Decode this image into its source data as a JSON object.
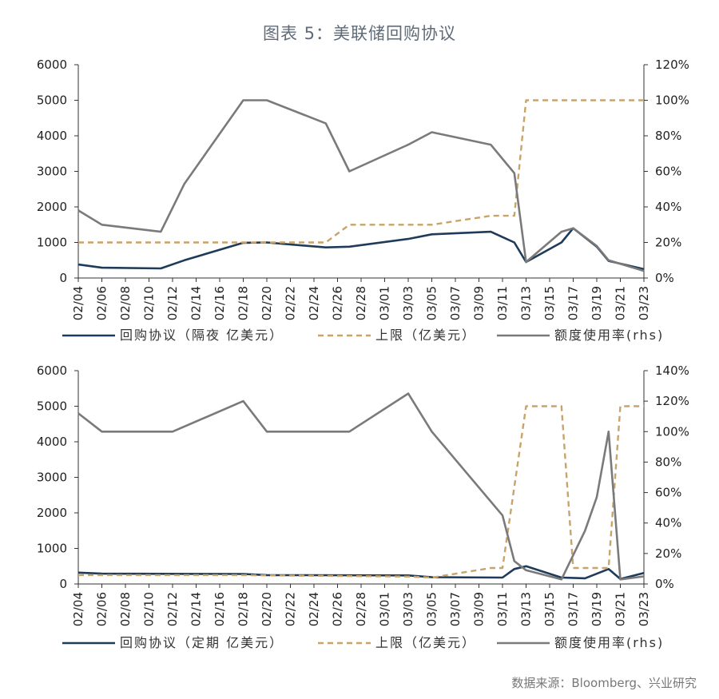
{
  "title": "图表 5：美联储回购协议",
  "source": "数据来源：Bloomberg、兴业研究",
  "colors": {
    "repo": "#1f3b5a",
    "cap": "#c8a46a",
    "usage": "#7a7a7a",
    "axis": "#333333"
  },
  "chart_data": [
    {
      "type": "line",
      "x": [
        "02/04",
        "02/05",
        "02/06",
        "02/07",
        "02/08",
        "02/09",
        "02/10",
        "02/11",
        "02/12",
        "02/13",
        "02/14",
        "02/15",
        "02/16",
        "02/17",
        "02/18",
        "02/19",
        "02/20",
        "02/21",
        "02/22",
        "02/23",
        "02/24",
        "02/25",
        "02/26",
        "02/27",
        "02/28",
        "02/29",
        "03/01",
        "03/02",
        "03/03",
        "03/04",
        "03/05",
        "03/06",
        "03/07",
        "03/08",
        "03/09",
        "03/10",
        "03/11",
        "03/12",
        "03/13",
        "03/14",
        "03/15",
        "03/16",
        "03/17",
        "03/18",
        "03/19",
        "03/20",
        "03/21",
        "03/22",
        "03/23"
      ],
      "xticks": [
        "02/04",
        "02/06",
        "02/08",
        "02/10",
        "02/12",
        "02/14",
        "02/16",
        "02/18",
        "02/20",
        "02/22",
        "02/24",
        "02/26",
        "02/28",
        "03/01",
        "03/03",
        "03/05",
        "03/07",
        "03/09",
        "03/11",
        "03/13",
        "03/15",
        "03/17",
        "03/19",
        "03/21",
        "03/23"
      ],
      "y_left": {
        "ticks": [
          "0",
          "1000",
          "2000",
          "3000",
          "4000",
          "5000",
          "6000"
        ],
        "min": 0,
        "max": 6000
      },
      "y_right": {
        "ticks": [
          "0%",
          "20%",
          "40%",
          "60%",
          "80%",
          "100%",
          "120%"
        ],
        "min": 0,
        "max": 120
      },
      "series": [
        {
          "name": "回购协议（隔夜 亿美元）",
          "axis": "left",
          "style": "solid",
          "color": "#1f3b5a",
          "points": [
            [
              "02/04",
              380
            ],
            [
              "02/06",
              290
            ],
            [
              "02/11",
              270
            ],
            [
              "02/13",
              500
            ],
            [
              "02/18",
              990
            ],
            [
              "02/20",
              1000
            ],
            [
              "02/25",
              860
            ],
            [
              "02/27",
              880
            ],
            [
              "03/03",
              1100
            ],
            [
              "03/05",
              1230
            ],
            [
              "03/10",
              1300
            ],
            [
              "03/12",
              1000
            ],
            [
              "03/13",
              450
            ],
            [
              "03/16",
              1000
            ],
            [
              "03/17",
              1400
            ],
            [
              "03/19",
              880
            ],
            [
              "03/20",
              480
            ],
            [
              "03/23",
              250
            ]
          ]
        },
        {
          "name": "上限（亿美元）",
          "axis": "left",
          "style": "dashed",
          "color": "#c8a46a",
          "points": [
            [
              "02/04",
              1000
            ],
            [
              "02/25",
              1000
            ],
            [
              "02/27",
              1500
            ],
            [
              "03/05",
              1500
            ],
            [
              "03/10",
              1750
            ],
            [
              "03/12",
              1750
            ],
            [
              "03/13",
              5000
            ],
            [
              "03/23",
              5000
            ]
          ]
        },
        {
          "name": "额度使用率(rhs)",
          "axis": "right",
          "style": "solid",
          "color": "#7a7a7a",
          "points": [
            [
              "02/04",
              38
            ],
            [
              "02/06",
              30
            ],
            [
              "02/11",
              26
            ],
            [
              "02/13",
              53
            ],
            [
              "02/18",
              100
            ],
            [
              "02/20",
              100
            ],
            [
              "02/25",
              87
            ],
            [
              "02/27",
              60
            ],
            [
              "03/03",
              75
            ],
            [
              "03/05",
              82
            ],
            [
              "03/10",
              75
            ],
            [
              "03/12",
              59
            ],
            [
              "03/13",
              9
            ],
            [
              "03/16",
              26
            ],
            [
              "03/17",
              28
            ],
            [
              "03/19",
              18
            ],
            [
              "03/20",
              10
            ],
            [
              "03/23",
              4
            ]
          ]
        }
      ]
    },
    {
      "type": "line",
      "x": [
        "02/04",
        "02/05",
        "02/06",
        "02/07",
        "02/08",
        "02/09",
        "02/10",
        "02/11",
        "02/12",
        "02/13",
        "02/14",
        "02/15",
        "02/16",
        "02/17",
        "02/18",
        "02/19",
        "02/20",
        "02/21",
        "02/22",
        "02/23",
        "02/24",
        "02/25",
        "02/26",
        "02/27",
        "02/28",
        "02/29",
        "03/01",
        "03/02",
        "03/03",
        "03/04",
        "03/05",
        "03/06",
        "03/07",
        "03/08",
        "03/09",
        "03/10",
        "03/11",
        "03/12",
        "03/13",
        "03/14",
        "03/15",
        "03/16",
        "03/17",
        "03/18",
        "03/19",
        "03/20",
        "03/21",
        "03/22",
        "03/23"
      ],
      "xticks": [
        "02/04",
        "02/06",
        "02/08",
        "02/10",
        "02/12",
        "02/14",
        "02/16",
        "02/18",
        "02/20",
        "02/22",
        "02/24",
        "02/26",
        "02/28",
        "03/01",
        "03/03",
        "03/05",
        "03/07",
        "03/09",
        "03/11",
        "03/13",
        "03/15",
        "03/17",
        "03/19",
        "03/21",
        "03/23"
      ],
      "y_left": {
        "ticks": [
          "0",
          "1000",
          "2000",
          "3000",
          "4000",
          "5000",
          "6000"
        ],
        "min": 0,
        "max": 6000
      },
      "y_right": {
        "ticks": [
          "0%",
          "20%",
          "40%",
          "60%",
          "80%",
          "100%",
          "120%",
          "140%"
        ],
        "min": 0,
        "max": 140
      },
      "series": [
        {
          "name": "回购协议（定期 亿美元）",
          "axis": "left",
          "style": "solid",
          "color": "#1f3b5a",
          "points": [
            [
              "02/04",
              320
            ],
            [
              "02/06",
              290
            ],
            [
              "02/18",
              280
            ],
            [
              "02/20",
              250
            ],
            [
              "03/03",
              240
            ],
            [
              "03/05",
              190
            ],
            [
              "03/11",
              180
            ],
            [
              "03/12",
              420
            ],
            [
              "03/13",
              500
            ],
            [
              "03/16",
              180
            ],
            [
              "03/17",
              170
            ],
            [
              "03/18",
              160
            ],
            [
              "03/20",
              420
            ],
            [
              "03/21",
              140
            ],
            [
              "03/23",
              310
            ]
          ]
        },
        {
          "name": "上限（亿美元）",
          "axis": "left",
          "style": "dashed",
          "color": "#c8a46a",
          "points": [
            [
              "02/04",
              250
            ],
            [
              "02/18",
              250
            ],
            [
              "02/20",
              240
            ],
            [
              "03/03",
              210
            ],
            [
              "03/05",
              180
            ],
            [
              "03/10",
              450
            ],
            [
              "03/11",
              450
            ],
            [
              "03/13",
              5000
            ],
            [
              "03/16",
              5000
            ],
            [
              "03/17",
              450
            ],
            [
              "03/19",
              450
            ],
            [
              "03/20",
              450
            ],
            [
              "03/21",
              5000
            ],
            [
              "03/23",
              5000
            ]
          ]
        },
        {
          "name": "额度使用率(rhs)",
          "axis": "right",
          "style": "solid",
          "color": "#7a7a7a",
          "points": [
            [
              "02/04",
              112
            ],
            [
              "02/06",
              100
            ],
            [
              "02/12",
              100
            ],
            [
              "02/18",
              120
            ],
            [
              "02/20",
              100
            ],
            [
              "02/27",
              100
            ],
            [
              "03/03",
              125
            ],
            [
              "03/05",
              100
            ],
            [
              "03/11",
              45
            ],
            [
              "03/12",
              15
            ],
            [
              "03/13",
              9
            ],
            [
              "03/16",
              3
            ],
            [
              "03/18",
              35
            ],
            [
              "03/19",
              57
            ],
            [
              "03/20",
              100
            ],
            [
              "03/21",
              3
            ],
            [
              "03/23",
              5
            ]
          ]
        }
      ]
    }
  ]
}
